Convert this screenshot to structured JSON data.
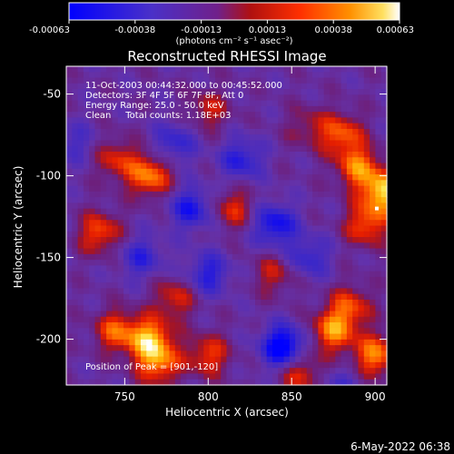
{
  "chart_data": {
    "type": "heatmap",
    "title": "Reconstructed RHESSI Image",
    "xlabel": "Heliocentric X (arcsec)",
    "ylabel": "Heliocentric Y (arcsec)",
    "xlim": [
      715,
      907
    ],
    "ylim": [
      -228,
      -33
    ],
    "x_ticks": [
      750,
      800,
      850,
      900
    ],
    "y_ticks": [
      -50,
      -100,
      -150,
      -200
    ],
    "colorbar": {
      "label": "(photons cm⁻² s⁻¹ asec⁻²)",
      "min": -0.00063,
      "max": 0.00063,
      "ticks": [
        "-0.00063",
        "-0.00038",
        "-0.00013",
        "0.00013",
        "0.00038",
        "0.00063"
      ],
      "colormap": "blue-purple-red-orange-yellow-white"
    },
    "annotations": [
      "11-Oct-2003 00:44:32.000 to 00:45:52.000",
      "Detectors: 3F 4F 5F 6F 7F 8F, Att 0",
      "Energy Range: 25.0 - 50.0 keV",
      "Clean     Total counts: 1.18E+03"
    ],
    "peak_label": "Position of Peak = [901,-120]",
    "peak": [
      901,
      -120
    ],
    "hotspots": [
      [
        905,
        -110,
        0.00063
      ],
      [
        890,
        -95,
        0.00045
      ],
      [
        880,
        -75,
        0.0004
      ],
      [
        895,
        -130,
        0.0004
      ],
      [
        765,
        -100,
        0.00048
      ],
      [
        745,
        -90,
        0.0003
      ],
      [
        735,
        -135,
        0.00038
      ],
      [
        815,
        -120,
        0.0003
      ],
      [
        780,
        -175,
        0.0003
      ],
      [
        765,
        -200,
        0.00055
      ],
      [
        745,
        -195,
        0.0004
      ],
      [
        770,
        -215,
        0.00045
      ],
      [
        800,
        -210,
        0.00035
      ],
      [
        875,
        -195,
        0.00048
      ],
      [
        885,
        -180,
        0.00035
      ],
      [
        855,
        -220,
        0.00035
      ],
      [
        900,
        -210,
        0.00048
      ],
      [
        840,
        -160,
        0.00025
      ],
      [
        800,
        -60,
        0.00025
      ],
      [
        860,
        -70,
        0.0002
      ],
      [
        790,
        -120,
        -0.0004
      ],
      [
        840,
        -130,
        -0.00045
      ],
      [
        760,
        -150,
        -0.0003
      ],
      [
        845,
        -205,
        -0.00063
      ],
      [
        820,
        -90,
        -0.00035
      ],
      [
        780,
        -80,
        -0.0003
      ],
      [
        720,
        -80,
        -0.0002
      ],
      [
        800,
        -160,
        -0.00035
      ],
      [
        860,
        -150,
        -0.0003
      ],
      [
        880,
        -230,
        -0.0002
      ]
    ]
  },
  "footer": {
    "date": "6-May-2022 06:38"
  }
}
